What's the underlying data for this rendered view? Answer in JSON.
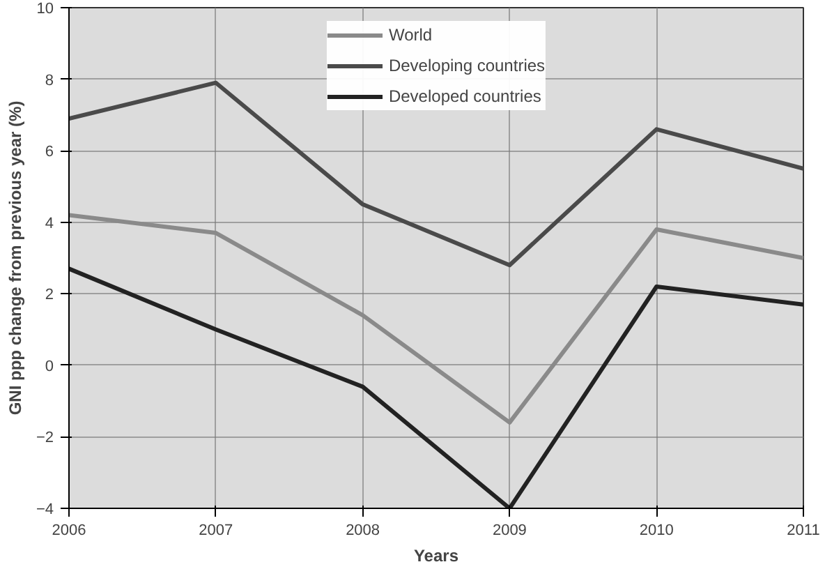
{
  "chart_data": {
    "type": "line",
    "xlabel": "Years",
    "ylabel": "GNI ppp change from previous year (%)",
    "x": [
      2006,
      2007,
      2008,
      2009,
      2010,
      2011
    ],
    "series": [
      {
        "name": "World",
        "color": "#8a8a8a",
        "values": [
          4.2,
          3.7,
          1.4,
          -1.6,
          3.8,
          3.0
        ]
      },
      {
        "name": "Developing countries",
        "color": "#4a4a4a",
        "values": [
          6.9,
          7.9,
          4.5,
          2.8,
          6.6,
          5.5
        ]
      },
      {
        "name": "Developed countries",
        "color": "#222222",
        "values": [
          2.7,
          1.0,
          -0.6,
          -4.0,
          2.2,
          1.7
        ]
      }
    ],
    "xlim": [
      2006,
      2011
    ],
    "xticks": [
      2006,
      2007,
      2008,
      2009,
      2010,
      2011
    ],
    "ylim": [
      -4,
      10
    ],
    "yticks": [
      -4,
      -2,
      0,
      2,
      4,
      6,
      8,
      10
    ],
    "grid": true,
    "legend": "top",
    "marker": "none",
    "line_style": "solid"
  }
}
